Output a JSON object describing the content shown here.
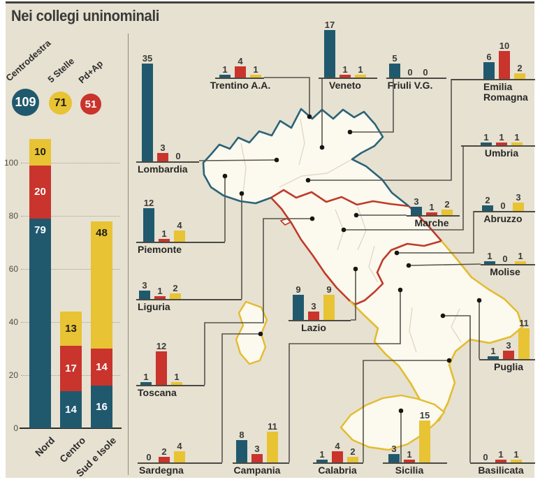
{
  "title": "Nei collegi uninominali",
  "legend": {
    "parties": [
      {
        "name": "Centrodestra",
        "total": "109",
        "color": "#20596e",
        "text_color": "#ffffff"
      },
      {
        "name": "5 Stelle",
        "total": "71",
        "color": "#e8c333",
        "text_color": "#1d1d1b"
      },
      {
        "name": "Pd+Ap",
        "total": "51",
        "color": "#c9342c",
        "text_color": "#ffffff"
      }
    ]
  },
  "map": {
    "areas": [
      {
        "name": "Nord",
        "outline_color": "#2a6378"
      },
      {
        "name": "Centro",
        "outline_color": "#bf3a2b"
      },
      {
        "name": "Sud e Isole",
        "outline_color": "#e3bc2f"
      }
    ]
  },
  "chart_data": [
    {
      "type": "bar",
      "stacked": true,
      "title": "Nei collegi uninominali",
      "categories": [
        "Nord",
        "Centro",
        "Sud e Isole"
      ],
      "series": [
        {
          "name": "Centrodestra",
          "color": "#20596e",
          "values": [
            79,
            14,
            16
          ]
        },
        {
          "name": "Pd+Ap",
          "color": "#c9342c",
          "values": [
            20,
            17,
            14
          ]
        },
        {
          "name": "5 Stelle",
          "color": "#e8c333",
          "values": [
            10,
            13,
            48
          ]
        }
      ],
      "totals": [
        {
          "party": "Centrodestra",
          "seats": 109
        },
        {
          "party": "5 Stelle",
          "seats": 71
        },
        {
          "party": "Pd+Ap",
          "seats": 51
        }
      ],
      "ylim": [
        0,
        100
      ],
      "yticks": [
        0,
        20,
        40,
        60,
        80,
        100
      ],
      "grid": true,
      "legend_position": "top-left"
    },
    {
      "type": "bar",
      "note": "small-multiple bar charts on Italy map, one per region",
      "series_order": [
        "Centrodestra",
        "Pd+Ap",
        "5 Stelle"
      ],
      "colors": [
        "#20596e",
        "#c9342c",
        "#e8c333"
      ],
      "regions": [
        {
          "id": "lombardia",
          "name": "Lombardia",
          "values": [
            35,
            3,
            0
          ]
        },
        {
          "id": "trentino",
          "name": "Trentino A.A.",
          "values": [
            1,
            4,
            1
          ]
        },
        {
          "id": "veneto",
          "name": "Veneto",
          "values": [
            17,
            1,
            1
          ]
        },
        {
          "id": "friuli",
          "name": "Friuli V.G.",
          "values": [
            5,
            0,
            0
          ]
        },
        {
          "id": "emilia",
          "name": "Emilia Romagna",
          "values": [
            6,
            10,
            2
          ]
        },
        {
          "id": "umbria",
          "name": "Umbria",
          "values": [
            1,
            1,
            1
          ]
        },
        {
          "id": "marche",
          "name": "Marche",
          "values": [
            3,
            1,
            2
          ]
        },
        {
          "id": "abruzzo",
          "name": "Abruzzo",
          "values": [
            2,
            0,
            3
          ]
        },
        {
          "id": "molise",
          "name": "Molise",
          "values": [
            1,
            0,
            1
          ]
        },
        {
          "id": "piemonte",
          "name": "Piemonte",
          "values": [
            12,
            1,
            4
          ]
        },
        {
          "id": "liguria",
          "name": "Liguria",
          "values": [
            3,
            1,
            2
          ]
        },
        {
          "id": "toscana",
          "name": "Toscana",
          "values": [
            1,
            12,
            1
          ]
        },
        {
          "id": "lazio",
          "name": "Lazio",
          "values": [
            9,
            3,
            9
          ]
        },
        {
          "id": "sardegna",
          "name": "Sardegna",
          "values": [
            0,
            2,
            4
          ]
        },
        {
          "id": "campania",
          "name": "Campania",
          "values": [
            8,
            3,
            11
          ]
        },
        {
          "id": "calabria",
          "name": "Calabria",
          "values": [
            1,
            4,
            2
          ]
        },
        {
          "id": "sicilia",
          "name": "Sicilia",
          "values": [
            3,
            1,
            15
          ]
        },
        {
          "id": "basilicata",
          "name": "Basilicata",
          "values": [
            0,
            1,
            1
          ]
        },
        {
          "id": "puglia",
          "name": "Puglia",
          "values": [
            1,
            3,
            11
          ]
        }
      ]
    }
  ]
}
